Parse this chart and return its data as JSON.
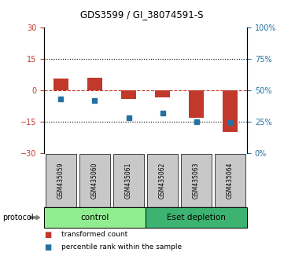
{
  "title": "GDS3599 / GI_38074591-S",
  "samples": [
    "GSM435059",
    "GSM435060",
    "GSM435061",
    "GSM435062",
    "GSM435063",
    "GSM435064"
  ],
  "red_bars": [
    5.5,
    6.0,
    -4.0,
    -3.5,
    -13.0,
    -20.0
  ],
  "blue_squares": [
    -4.0,
    -5.0,
    -13.0,
    -11.0,
    -15.0,
    -15.5
  ],
  "ylim_left": [
    -30,
    30
  ],
  "ylim_right": [
    0,
    100
  ],
  "yticks_left": [
    -30,
    -15,
    0,
    15,
    30
  ],
  "yticks_right": [
    0,
    25,
    50,
    75,
    100
  ],
  "hlines": [
    15,
    -15
  ],
  "bar_color": "#C0392B",
  "square_color": "#2471A3",
  "bar_width": 0.45,
  "groups": [
    {
      "label": "control",
      "indices": [
        0,
        1,
        2
      ],
      "color": "#90EE90"
    },
    {
      "label": "Eset depletion",
      "indices": [
        3,
        4,
        5
      ],
      "color": "#3CB371"
    }
  ],
  "protocol_label": "protocol",
  "legend_items": [
    {
      "color": "#C0392B",
      "label": "transformed count"
    },
    {
      "color": "#2471A3",
      "label": "percentile rank within the sample"
    }
  ],
  "background_color": "#FFFFFF",
  "tick_bg": "#C8C8C8"
}
